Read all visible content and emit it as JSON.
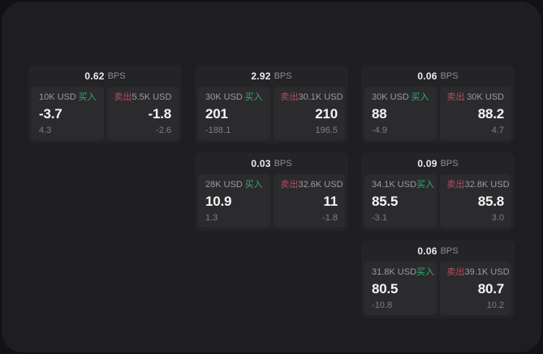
{
  "labels": {
    "bps_unit": "BPS",
    "buy": "买入",
    "sell": "卖出"
  },
  "colors": {
    "buy": "#2eae6c",
    "sell": "#bb4a5f",
    "card_bg": "#242427",
    "pane_bg": "#2b2b2e",
    "page_bg": "#1e1e20"
  },
  "cards": [
    {
      "bps": "0.62",
      "grid": {
        "col": 1,
        "row": 1
      },
      "buy": {
        "amount": "10K USD",
        "value": "-3.7",
        "delta": "4.3"
      },
      "sell": {
        "amount": "5.5K USD",
        "value": "-1.8",
        "delta": "-2.6"
      }
    },
    {
      "bps": "2.92",
      "grid": {
        "col": 2,
        "row": 1
      },
      "buy": {
        "amount": "30K USD",
        "value": "201",
        "delta": "-188.1"
      },
      "sell": {
        "amount": "30.1K USD",
        "value": "210",
        "delta": "196.5"
      }
    },
    {
      "bps": "0.06",
      "grid": {
        "col": 3,
        "row": 1
      },
      "buy": {
        "amount": "30K USD",
        "value": "88",
        "delta": "-4.9"
      },
      "sell": {
        "amount": "30K USD",
        "value": "88.2",
        "delta": "4.7"
      }
    },
    {
      "bps": "0.03",
      "grid": {
        "col": 2,
        "row": 2
      },
      "buy": {
        "amount": "28K USD",
        "value": "10.9",
        "delta": "1.3"
      },
      "sell": {
        "amount": "32.6K USD",
        "value": "11",
        "delta": "-1.8"
      }
    },
    {
      "bps": "0.09",
      "grid": {
        "col": 3,
        "row": 2
      },
      "buy": {
        "amount": "34.1K USD",
        "value": "85.5",
        "delta": "-3.1"
      },
      "sell": {
        "amount": "32.8K USD",
        "value": "85.8",
        "delta": "3.0"
      }
    },
    {
      "bps": "0.06",
      "grid": {
        "col": 3,
        "row": 3
      },
      "buy": {
        "amount": "31.8K USD",
        "value": "80.5",
        "delta": "-10.8"
      },
      "sell": {
        "amount": "39.1K USD",
        "value": "80.7",
        "delta": "10.2"
      }
    }
  ]
}
